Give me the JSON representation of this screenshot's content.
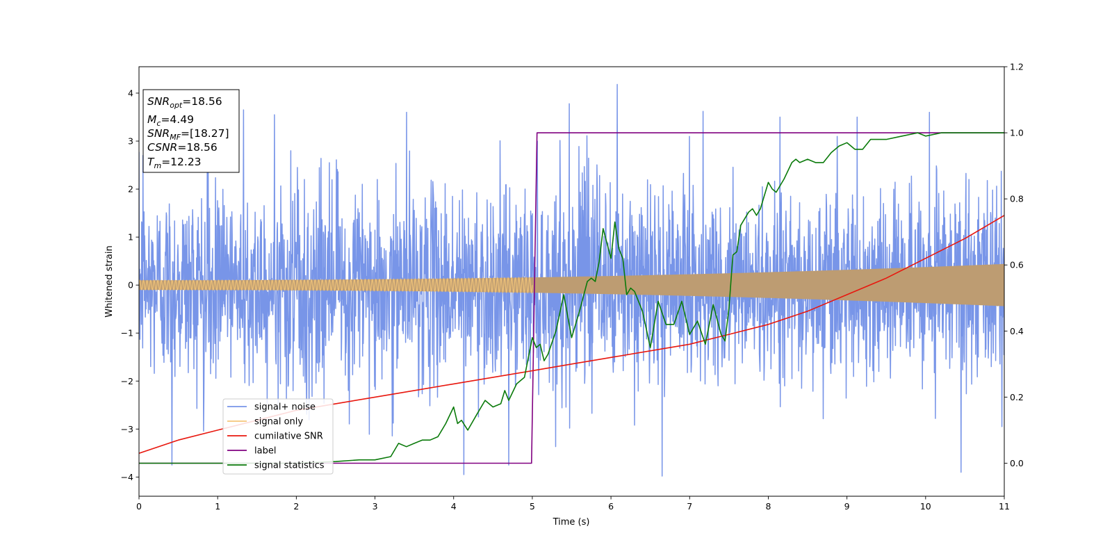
{
  "chart_data": {
    "type": "line",
    "title": "",
    "xlabel": "Time (s)",
    "ylabel": "Whitened strain",
    "xlim": [
      0,
      11
    ],
    "ylim": [
      -4.4,
      4.55
    ],
    "y2lim": [
      -0.1,
      1.2
    ],
    "xticks": [
      "0",
      "1",
      "2",
      "3",
      "4",
      "5",
      "6",
      "7",
      "8",
      "9",
      "10",
      "11"
    ],
    "yticks": [
      "−4",
      "−3",
      "−2",
      "−1",
      "0",
      "1",
      "2",
      "3",
      "4"
    ],
    "y2ticks": [
      "0.0",
      "0.2",
      "0.4",
      "0.6",
      "0.8",
      "1.0",
      "1.2"
    ],
    "grid": false,
    "legend_position": "lower-left",
    "annotations": [
      {
        "base": "SNR",
        "sub": "opt",
        "rest": "=18.56"
      },
      {
        "base": "M",
        "sub": "c",
        "rest": "=4.49"
      },
      {
        "base": "SNR",
        "sub": "MF",
        "rest": "=[18.27]"
      },
      {
        "base": "CSNR",
        "sub": "",
        "rest": "=18.56"
      },
      {
        "base": "T",
        "sub": "m",
        "rest": "=12.23"
      }
    ],
    "series": [
      {
        "name": "signal+ noise",
        "axis": "left",
        "color": "#7895e8",
        "kind": "noise",
        "noise_sigma": 1.0,
        "peaks": [
          [
            0.05,
            2.7
          ],
          [
            0.42,
            -3.75
          ],
          [
            1.33,
            3.65
          ],
          [
            1.72,
            3.55
          ],
          [
            3.4,
            3.6
          ],
          [
            4.13,
            -3.95
          ],
          [
            4.7,
            3.62
          ],
          [
            4.7,
            -3.75
          ],
          [
            5.47,
            3.78
          ],
          [
            6.08,
            4.18
          ],
          [
            6.65,
            -3.98
          ],
          [
            7.17,
            3.62
          ],
          [
            8.15,
            3.5
          ],
          [
            9.13,
            3.5
          ],
          [
            10.05,
            3.6
          ],
          [
            10.45,
            -3.9
          ],
          [
            10.55,
            2.2
          ],
          [
            10.97,
            -2.95
          ]
        ]
      },
      {
        "name": "signal only",
        "axis": "left",
        "color": "#f4c67a",
        "kind": "chirp_envelope",
        "amplitude_start": 0.1,
        "amplitude_end": 0.44
      },
      {
        "name": "cumilative SNR",
        "axis": "right",
        "color": "#e8170e",
        "x": [
          0,
          0.5,
          1,
          1.5,
          2,
          2.5,
          3,
          3.5,
          4,
          4.5,
          5,
          5.5,
          6,
          6.5,
          7,
          7.5,
          8,
          8.5,
          9,
          9.5,
          10,
          10.5,
          11
        ],
        "y": [
          0.03,
          0.07,
          0.1,
          0.13,
          0.16,
          0.18,
          0.2,
          0.22,
          0.24,
          0.26,
          0.28,
          0.3,
          0.32,
          0.34,
          0.36,
          0.39,
          0.42,
          0.46,
          0.51,
          0.56,
          0.62,
          0.68,
          0.75
        ]
      },
      {
        "name": "label",
        "axis": "right",
        "color": "#800080",
        "x": [
          0,
          4.99,
          5.06,
          11
        ],
        "y": [
          0,
          0,
          1,
          1
        ]
      },
      {
        "name": "signal statistics",
        "axis": "right",
        "color": "#0a7a0a",
        "x": [
          0,
          1,
          2,
          2.5,
          2.8,
          3.0,
          3.2,
          3.3,
          3.4,
          3.5,
          3.6,
          3.7,
          3.8,
          3.9,
          4.0,
          4.05,
          4.1,
          4.18,
          4.3,
          4.4,
          4.5,
          4.6,
          4.65,
          4.7,
          4.8,
          4.9,
          5.0,
          5.05,
          5.1,
          5.15,
          5.2,
          5.3,
          5.4,
          5.5,
          5.6,
          5.7,
          5.75,
          5.8,
          5.85,
          5.9,
          6.0,
          6.05,
          6.1,
          6.15,
          6.2,
          6.25,
          6.3,
          6.4,
          6.5,
          6.6,
          6.7,
          6.8,
          6.9,
          7.0,
          7.1,
          7.2,
          7.3,
          7.4,
          7.45,
          7.5,
          7.55,
          7.6,
          7.65,
          7.7,
          7.75,
          7.8,
          7.85,
          7.9,
          8.0,
          8.05,
          8.1,
          8.2,
          8.3,
          8.35,
          8.4,
          8.5,
          8.6,
          8.7,
          8.8,
          8.9,
          9.0,
          9.1,
          9.2,
          9.3,
          9.5,
          9.7,
          9.9,
          10.0,
          10.2,
          10.5,
          11
        ],
        "y": [
          0,
          0,
          0,
          0.005,
          0.01,
          0.01,
          0.02,
          0.06,
          0.05,
          0.06,
          0.07,
          0.07,
          0.08,
          0.12,
          0.17,
          0.12,
          0.13,
          0.1,
          0.15,
          0.19,
          0.17,
          0.18,
          0.22,
          0.19,
          0.24,
          0.26,
          0.38,
          0.35,
          0.36,
          0.31,
          0.33,
          0.4,
          0.51,
          0.38,
          0.46,
          0.55,
          0.56,
          0.55,
          0.61,
          0.71,
          0.62,
          0.73,
          0.65,
          0.62,
          0.51,
          0.53,
          0.52,
          0.46,
          0.35,
          0.49,
          0.42,
          0.42,
          0.49,
          0.39,
          0.43,
          0.36,
          0.48,
          0.39,
          0.37,
          0.47,
          0.63,
          0.64,
          0.72,
          0.74,
          0.76,
          0.77,
          0.75,
          0.77,
          0.85,
          0.83,
          0.82,
          0.86,
          0.91,
          0.92,
          0.91,
          0.92,
          0.91,
          0.91,
          0.94,
          0.96,
          0.97,
          0.95,
          0.95,
          0.98,
          0.98,
          0.99,
          1.0,
          0.99,
          1.0,
          1.0,
          1.0
        ]
      }
    ]
  }
}
